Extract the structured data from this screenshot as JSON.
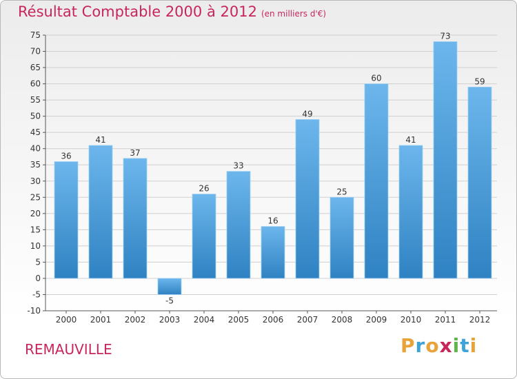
{
  "chart_title": "Résultat Comptable 2000 à 2012",
  "chart_subtitle": "(en milliers d'€)",
  "location": "REMAUVILLE",
  "brand_letters": [
    "P",
    "r",
    "o",
    "x",
    "i",
    "t",
    "i"
  ],
  "brand_colors": [
    "#e8a33a",
    "#3fa3d8",
    "#e8a33a",
    "#c8265a",
    "#5fb548",
    "#3fa3d8",
    "#e8a33a"
  ],
  "colors": {
    "bar_light": "#6cb6ec",
    "bar_dark": "#2f82c2",
    "title": "#c8265a",
    "grid": "#cfcfcf",
    "text": "#333333"
  },
  "chart_data": {
    "type": "bar",
    "categories": [
      "2000",
      "2001",
      "2002",
      "2003",
      "2004",
      "2005",
      "2006",
      "2007",
      "2008",
      "2009",
      "2010",
      "2011",
      "2012"
    ],
    "values": [
      36,
      41,
      37,
      -5,
      26,
      33,
      16,
      49,
      25,
      60,
      41,
      73,
      59
    ],
    "ylim": [
      -10,
      75
    ],
    "yticks": [
      -10,
      -5,
      0,
      5,
      10,
      15,
      20,
      25,
      30,
      35,
      40,
      45,
      50,
      55,
      60,
      65,
      70,
      75
    ],
    "grid": true,
    "legend": "none"
  }
}
